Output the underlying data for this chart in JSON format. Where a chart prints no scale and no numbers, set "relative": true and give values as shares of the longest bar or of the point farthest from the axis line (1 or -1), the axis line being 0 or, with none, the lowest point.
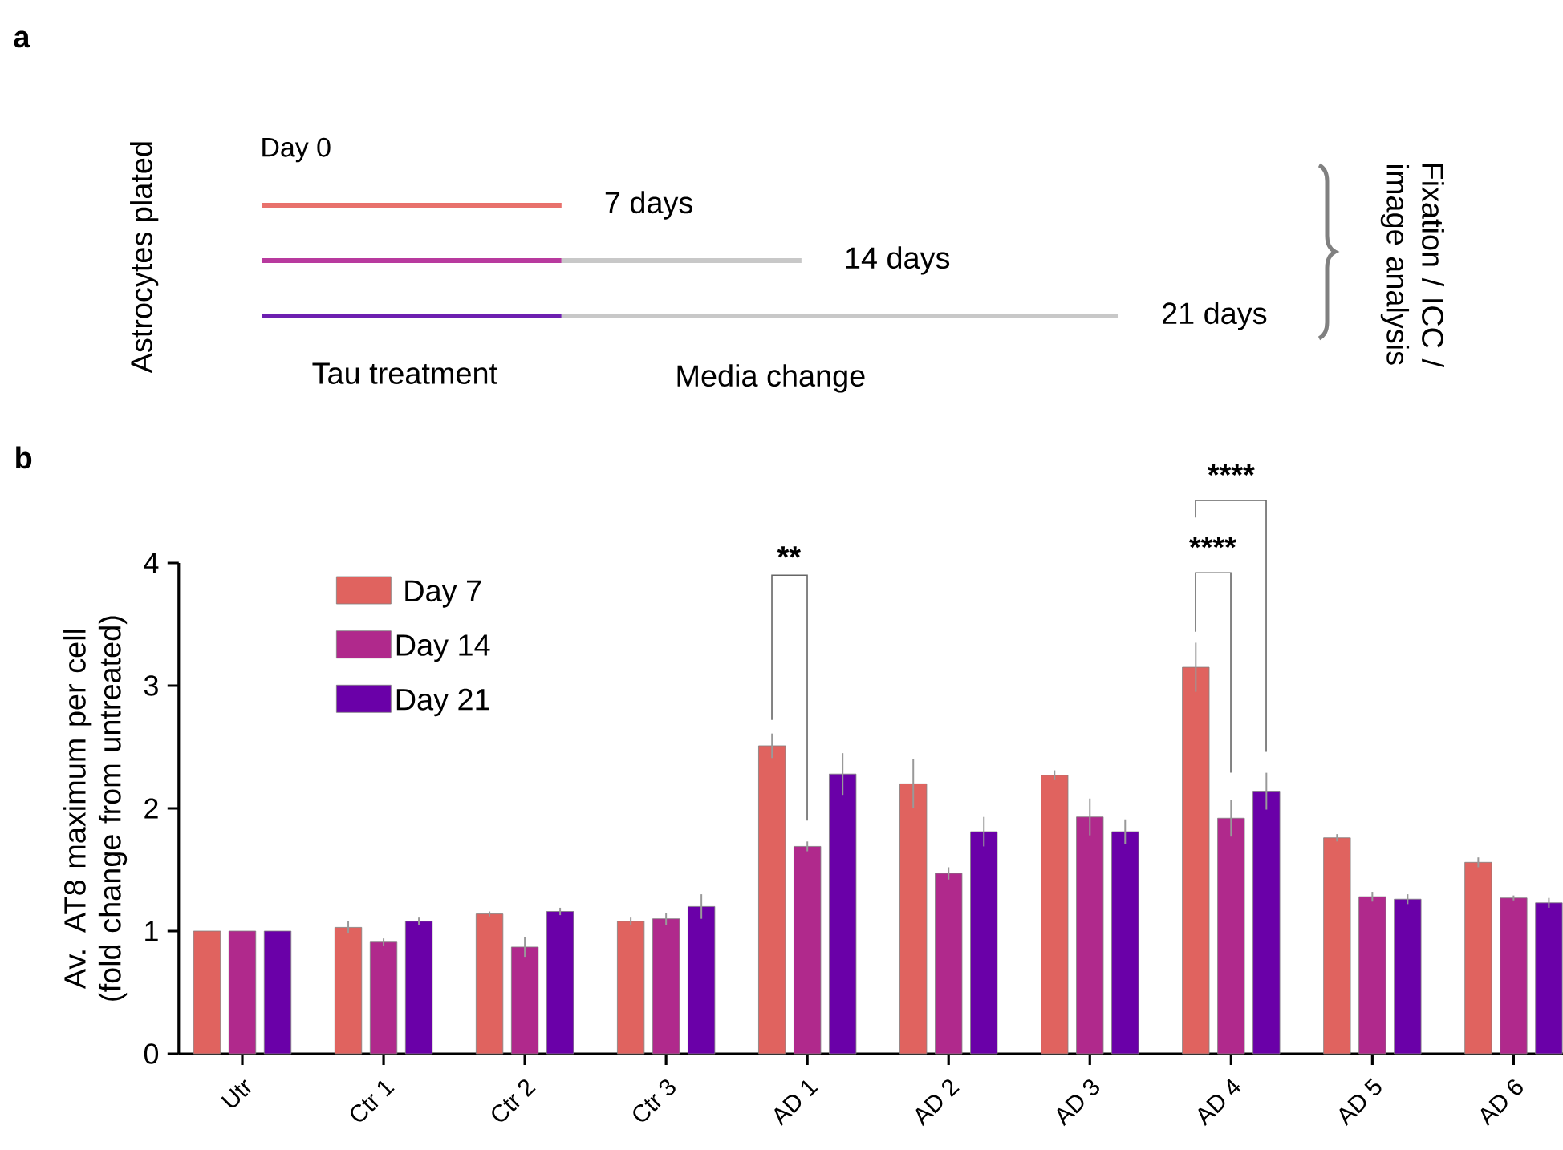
{
  "chart_data": [
    {
      "type": "bar",
      "orientation": "horizontal",
      "stacked": true,
      "relative": true,
      "ylabel": "Astrocytes plated",
      "categories": [
        null,
        null,
        null
      ],
      "series": [
        {
          "colors": [
            "#e8716c",
            "#b83a9e",
            "#6d1fb0"
          ],
          "values": [
            0.35,
            0.35,
            0.35
          ]
        },
        {
          "color": "#c8c8c8",
          "values": [
            0,
            0.28,
            0.65
          ]
        }
      ],
      "annotations": [
        "a",
        "Day 0",
        "Tau treatment",
        "Media change",
        "Fixation / ICC / image analysis",
        "7 days",
        "14 days",
        "21 days"
      ]
    },
    {
      "type": "bar",
      "ylabel": "Av. AT8 maximum per cell (fold change from untreated)",
      "categories": [
        "Utr",
        "Ctr 1",
        "Ctr 2",
        "Ctr 3",
        "AD 1",
        "AD 2",
        "AD 3",
        "AD 4",
        "AD 5",
        "AD 6"
      ],
      "ylim": [
        0,
        4
      ],
      "yticks": [
        0,
        1,
        2,
        3,
        4
      ],
      "legend": "top left",
      "series": [
        {
          "name": "Day 7",
          "color": "#e0635f",
          "values": [
            1,
            1.03,
            1.14,
            1.08,
            2.51,
            2.2,
            2.27,
            3.15,
            1.76,
            1.56
          ],
          "errors": [
            null,
            0.05,
            0.02,
            0.03,
            0.1,
            0.2,
            0.04,
            0.2,
            0.03,
            0.04
          ]
        },
        {
          "name": "Day 14",
          "color": "#b0298c",
          "values": [
            1,
            0.91,
            0.87,
            1.1,
            1.69,
            1.47,
            1.93,
            1.92,
            1.28,
            1.27
          ],
          "errors": [
            null,
            0.03,
            0.08,
            0.05,
            0.04,
            0.05,
            0.15,
            0.15,
            0.04,
            0.02
          ]
        },
        {
          "name": "Day 21",
          "color": "#6a00a8",
          "values": [
            1,
            1.08,
            1.16,
            1.2,
            2.28,
            1.81,
            1.81,
            2.14,
            1.26,
            1.23
          ],
          "errors": [
            null,
            0.03,
            0.03,
            0.1,
            0.17,
            0.12,
            0.1,
            0.15,
            0.04,
            0.04
          ]
        }
      ],
      "annotations": [
        "b",
        "**",
        "****",
        "****"
      ]
    }
  ]
}
